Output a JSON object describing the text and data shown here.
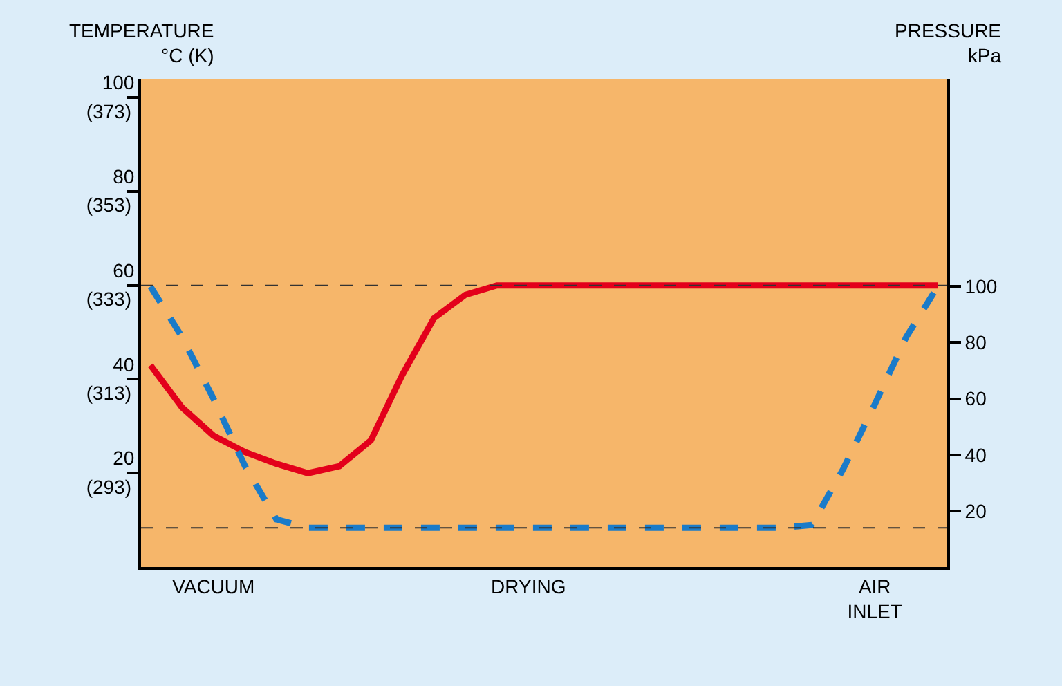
{
  "chart_data": {
    "type": "line",
    "ylabel": "TEMPERATURE\n°C (K)",
    "y2label": "PRESSURE\nkPa",
    "categories": [
      null,
      null,
      "VACUUM",
      null,
      null,
      null,
      null,
      null,
      null,
      null,
      null,
      null,
      "DRYING",
      null,
      null,
      null,
      null,
      null,
      null,
      null,
      null,
      null,
      null,
      "AIR\nINLET",
      null,
      null
    ],
    "ylim": [
      0,
      104
    ],
    "yticks": [
      20,
      40,
      60,
      80,
      100
    ],
    "y3lim": [
      273,
      377
    ],
    "y3ticks": [
      {
        "value": 293,
        "label": "(293)"
      },
      {
        "value": 313,
        "label": "(313)"
      },
      {
        "value": 333,
        "label": "(333)"
      },
      {
        "value": 353,
        "label": "(353)"
      },
      {
        "value": 373,
        "label": "(373)"
      }
    ],
    "y2lim": [
      0,
      174
    ],
    "y2ticks": [
      20,
      40,
      60,
      80,
      100
    ],
    "series": [
      {
        "color": "#e3001b",
        "line_style": "solid",
        "values": [
          43,
          34,
          28,
          24.5,
          22,
          20,
          21.5,
          27,
          41,
          53,
          58,
          60,
          60,
          60,
          60,
          60,
          60,
          60,
          60,
          60,
          60,
          60,
          60,
          60,
          60,
          60
        ]
      },
      {
        "color": "#1a7bc9",
        "line_style": "dashed",
        "axis": "y2",
        "values": [
          100,
          82,
          60,
          36,
          17,
          14,
          14,
          14,
          14,
          14,
          14,
          14,
          14,
          14,
          14,
          14,
          14,
          14,
          14,
          14,
          14,
          15,
          35,
          58,
          82,
          100
        ]
      }
    ],
    "ref_lines": [
      {
        "axis": "y",
        "value": 60,
        "line_style": "dashed"
      },
      {
        "axis": "y2",
        "value": 14,
        "line_style": "dashed"
      }
    ],
    "marker": "none",
    "grid": false
  }
}
